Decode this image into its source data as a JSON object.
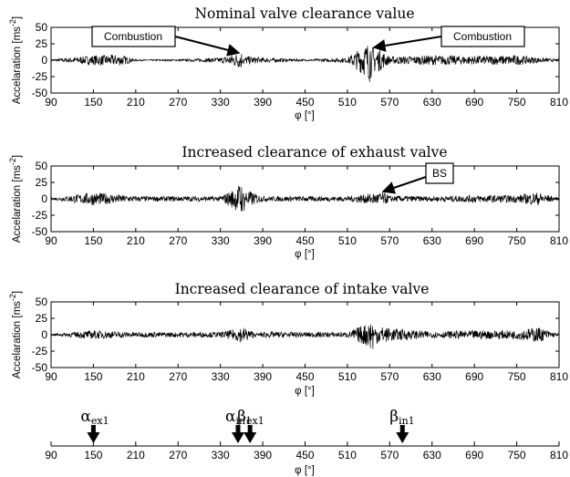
{
  "chart_data": [
    {
      "type": "line",
      "title": "Nominal valve clearance value",
      "xlabel": "φ [°]",
      "ylabel": "Accelaration [ms",
      "ylabel_sup": "-2",
      "ylabel_close": "]",
      "xlim": [
        90,
        810
      ],
      "ylim": [
        -50,
        50
      ],
      "xticks": [
        "90",
        "150",
        "210",
        "270",
        "330",
        "390",
        "450",
        "510",
        "570",
        "630",
        "690",
        "750",
        "810"
      ],
      "yticks": [
        "50",
        "25",
        "0",
        "-25",
        "-50"
      ],
      "grid": false,
      "series": [
        {
          "x": [
            90,
            150,
            190,
            210,
            270,
            330,
            357,
            360,
            363,
            366,
            390,
            450,
            510,
            540,
            543,
            546,
            549,
            552,
            570,
            630,
            690,
            750,
            810
          ],
          "y": [
            0,
            7,
            8,
            0,
            0,
            3,
            12,
            14,
            -10,
            6,
            3,
            0,
            3,
            30,
            45,
            -35,
            25,
            20,
            5,
            7,
            6,
            7,
            0
          ]
        }
      ],
      "annotations": [
        {
          "text": "Combustion",
          "x": 360,
          "y": 14
        },
        {
          "text": "Combustion",
          "x": 546,
          "y": 40
        }
      ]
    },
    {
      "type": "line",
      "title": "Increased clearance of exhaust valve",
      "xlabel": "φ [°]",
      "ylabel": "Accelaration [ms",
      "ylabel_sup": "-2",
      "ylabel_close": "]",
      "xlim": [
        90,
        810
      ],
      "ylim": [
        -50,
        50
      ],
      "xticks": [
        "90",
        "150",
        "210",
        "270",
        "330",
        "390",
        "450",
        "510",
        "570",
        "630",
        "690",
        "750",
        "810"
      ],
      "yticks": [
        "50",
        "25",
        "0",
        "-25",
        "-50"
      ],
      "grid": false,
      "series": [
        {
          "x": [
            90,
            150,
            210,
            270,
            330,
            355,
            360,
            363,
            366,
            390,
            450,
            510,
            560,
            570,
            630,
            690,
            750,
            780,
            810
          ],
          "y": [
            0,
            10,
            3,
            3,
            3,
            20,
            35,
            -30,
            15,
            3,
            3,
            3,
            10,
            4,
            3,
            5,
            5,
            10,
            0
          ]
        }
      ],
      "annotations": [
        {
          "text": "BS",
          "x": 560,
          "y": 8
        }
      ]
    },
    {
      "type": "line",
      "title": "Increased clearance of intake valve",
      "xlabel": "φ [°]",
      "ylabel": "Accelaration [ms",
      "ylabel_sup": "-2",
      "ylabel_close": "]",
      "xlim": [
        90,
        810
      ],
      "ylim": [
        -50,
        50
      ],
      "xticks": [
        "90",
        "150",
        "210",
        "270",
        "330",
        "390",
        "450",
        "510",
        "570",
        "630",
        "690",
        "750",
        "810"
      ],
      "yticks": [
        "50",
        "25",
        "0",
        "-25",
        "-50"
      ],
      "grid": false,
      "series": [
        {
          "x": [
            90,
            150,
            210,
            270,
            330,
            357,
            360,
            363,
            390,
            450,
            510,
            540,
            543,
            546,
            549,
            570,
            630,
            690,
            750,
            780,
            810
          ],
          "y": [
            0,
            6,
            3,
            3,
            3,
            10,
            15,
            -12,
            4,
            3,
            3,
            20,
            28,
            -30,
            15,
            10,
            4,
            6,
            6,
            12,
            0
          ]
        }
      ]
    },
    {
      "type": "axis",
      "xlabel": "φ [°]",
      "xlim": [
        90,
        810
      ],
      "xticks": [
        "90",
        "150",
        "210",
        "270",
        "330",
        "390",
        "450",
        "510",
        "570",
        "630",
        "690",
        "750",
        "810"
      ],
      "markers": [
        {
          "symbol": "α",
          "sub": "ex1",
          "x": 150
        },
        {
          "symbol": "α",
          "sub": "in1",
          "x": 355
        },
        {
          "symbol": "β",
          "sub": "ex1",
          "x": 372
        },
        {
          "symbol": "β",
          "sub": "in1",
          "x": 588
        }
      ]
    }
  ]
}
